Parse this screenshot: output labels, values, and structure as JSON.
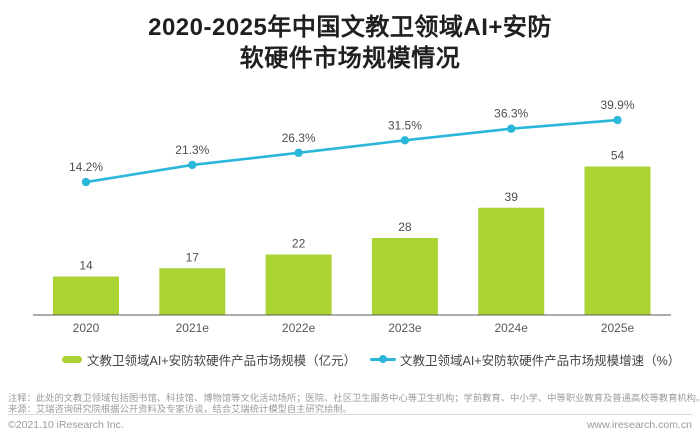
{
  "title": {
    "line1": "2020-2025年中国文教卫领域AI+安防",
    "line2": "软硬件市场规模情况"
  },
  "chart_data": {
    "type": "bar",
    "title": "2020-2025年中国文教卫领域AI+安防软硬件市场规模情况",
    "categories": [
      "2020",
      "2021e",
      "2022e",
      "2023e",
      "2024e",
      "2025e"
    ],
    "series": [
      {
        "name": "文教卫领域AI+安防软硬件产品市场规模（亿元）",
        "type": "bar",
        "unit": "亿元",
        "values": [
          14,
          17,
          22,
          28,
          39,
          54
        ],
        "data_labels": [
          "14",
          "17",
          "22",
          "28",
          "39",
          "54"
        ],
        "color": "#aad334"
      },
      {
        "name": "文教卫领域AI+安防软硬件产品市场规模增速（%）",
        "type": "line",
        "unit": "%",
        "values": [
          14.2,
          21.3,
          26.3,
          31.5,
          36.3,
          39.9
        ],
        "data_labels": [
          "14.2%",
          "21.3%",
          "26.3%",
          "31.5%",
          "36.3%",
          "39.9%"
        ],
        "color": "#2bb7da"
      }
    ],
    "xlabel": "",
    "ylabel": "",
    "y_axis_visible": false,
    "grid": false,
    "legend_position": "bottom",
    "bar_ylim": [
      0,
      60
    ],
    "line_ylim": [
      0,
      45
    ],
    "label_color": "#4d4d4d",
    "axis_color": "#595959"
  },
  "legend": {
    "items": [
      {
        "label": "文教卫领域AI+安防软硬件产品市场规模（亿元）",
        "marker": "square",
        "color": "#aad334"
      },
      {
        "label": "文教卫领域AI+安防软硬件产品市场规模增速（%）",
        "marker": "line-dot",
        "color": "#2bb7da"
      }
    ]
  },
  "notes": {
    "note": "注释：此处的文教卫领域包括图书馆、科技馆、博物馆等文化活动场所；医院、社区卫生服务中心等卫生机构；学前教育、中小学、中等职业教育及普通高校等教育机构。",
    "source": "来源：艾瑞咨询研究院根据公开资料及专家访谈，结合艾瑞统计模型自主研究绘制。"
  },
  "footer": {
    "copyright": "©2021.10 iResearch Inc.",
    "website": "www.iresearch.com.cn"
  }
}
